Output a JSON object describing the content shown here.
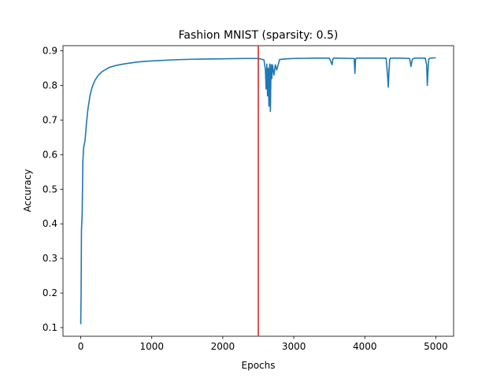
{
  "chart_data": {
    "type": "line",
    "title": "Fashion MNIST (sparsity: 0.5)",
    "xlabel": "Epochs",
    "ylabel": "Accuracy",
    "xlim": [
      -250,
      5250
    ],
    "ylim": [
      0.075,
      0.915
    ],
    "xticks": [
      0,
      1000,
      2000,
      3000,
      4000,
      5000
    ],
    "yticks": [
      0.1,
      0.2,
      0.3,
      0.4,
      0.5,
      0.6,
      0.7,
      0.8,
      0.9
    ],
    "grid": false,
    "series": [
      {
        "color": "#1f77b4",
        "x": [
          0,
          5,
          10,
          20,
          30,
          40,
          50,
          60,
          80,
          100,
          130,
          160,
          200,
          250,
          300,
          400,
          500,
          600,
          800,
          1000,
          1300,
          1600,
          2000,
          2300,
          2500,
          2580,
          2600,
          2610,
          2620,
          2630,
          2640,
          2650,
          2660,
          2670,
          2680,
          2690,
          2700,
          2720,
          2740,
          2760,
          2800,
          2900,
          3000,
          3300,
          3500,
          3540,
          3550,
          3560,
          3600,
          3850,
          3860,
          3870,
          3880,
          4000,
          4300,
          4320,
          4330,
          4340,
          4350,
          4360,
          4500,
          4630,
          4650,
          4670,
          4700,
          4850,
          4870,
          4880,
          4890,
          4900,
          4920,
          5000
        ],
        "y": [
          0.11,
          0.2,
          0.38,
          0.43,
          0.58,
          0.62,
          0.63,
          0.64,
          0.69,
          0.73,
          0.77,
          0.795,
          0.815,
          0.83,
          0.84,
          0.852,
          0.858,
          0.862,
          0.868,
          0.871,
          0.874,
          0.876,
          0.877,
          0.878,
          0.878,
          0.874,
          0.845,
          0.79,
          0.862,
          0.77,
          0.85,
          0.74,
          0.862,
          0.725,
          0.86,
          0.82,
          0.86,
          0.83,
          0.86,
          0.845,
          0.875,
          0.877,
          0.878,
          0.879,
          0.879,
          0.86,
          0.876,
          0.879,
          0.879,
          0.878,
          0.835,
          0.876,
          0.879,
          0.879,
          0.879,
          0.83,
          0.795,
          0.84,
          0.875,
          0.879,
          0.879,
          0.878,
          0.855,
          0.876,
          0.879,
          0.879,
          0.86,
          0.8,
          0.845,
          0.876,
          0.879,
          0.88
        ]
      }
    ],
    "vline": {
      "x": 2500,
      "color": "#d62728"
    }
  }
}
